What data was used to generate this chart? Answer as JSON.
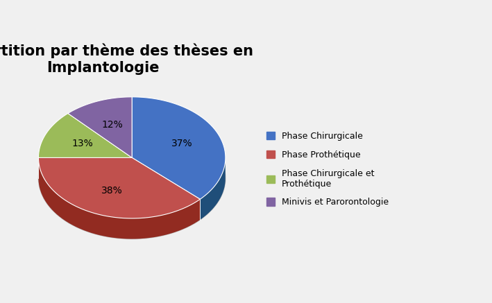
{
  "title": "Répartition par thème des thèses en\nImplantologie",
  "slices": [
    37,
    38,
    13,
    12
  ],
  "labels": [
    "37%",
    "38%",
    "13%",
    "12%"
  ],
  "colors": [
    "#4472C4",
    "#C0504D",
    "#9BBB59",
    "#8064A2"
  ],
  "dark_colors": [
    "#1F4E79",
    "#922B21",
    "#4B5320",
    "#4A235A"
  ],
  "legend_labels": [
    "Phase Chirurgicale",
    "Phase Prothétique",
    "Phase Chirurgicale et\nProthétique",
    "Minivis et Parorontologie"
  ],
  "startangle": 90,
  "background_color": "#f0f0f0",
  "title_fontsize": 15,
  "label_dist": 0.65
}
